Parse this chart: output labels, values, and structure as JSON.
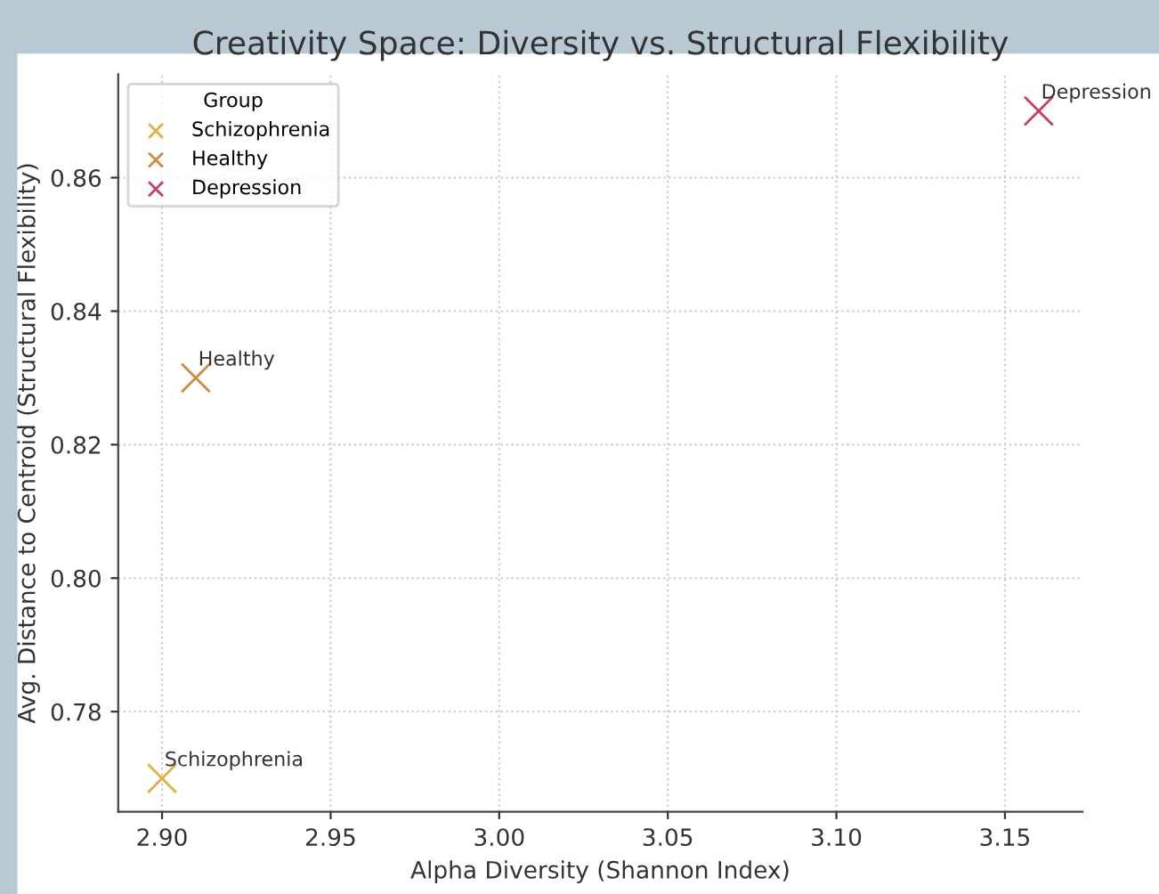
{
  "chart_data": {
    "type": "scatter",
    "title": "Creativity Space: Diversity vs. Structural Flexibility",
    "xlabel": "Alpha Diversity (Shannon Index)",
    "ylabel": "Avg. Distance to Centroid (Structural Flexibility)",
    "legend_title": "Group",
    "legend": "top left",
    "grid": true,
    "marker": "cross",
    "xlim": [
      2.887,
      3.173
    ],
    "xticks": [
      {
        "value": 2.9,
        "label": "2.90"
      },
      {
        "value": 2.95,
        "label": "2.95"
      },
      {
        "value": 3.0,
        "label": "3.00"
      },
      {
        "value": 3.05,
        "label": "3.05"
      },
      {
        "value": 3.1,
        "label": "3.10"
      },
      {
        "value": 3.15,
        "label": "3.15"
      }
    ],
    "ylim": [
      0.765,
      0.8755
    ],
    "yticks": [
      {
        "value": 0.78,
        "label": "0.78"
      },
      {
        "value": 0.8,
        "label": "0.80"
      },
      {
        "value": 0.82,
        "label": "0.82"
      },
      {
        "value": 0.84,
        "label": "0.84"
      },
      {
        "value": 0.86,
        "label": "0.86"
      }
    ],
    "series": [
      {
        "name": "Schizophrenia",
        "color": "#e0b040",
        "x": [
          2.9
        ],
        "values": [
          0.77
        ]
      },
      {
        "name": "Healthy",
        "color": "#d08a40",
        "x": [
          2.91
        ],
        "values": [
          0.83
        ]
      },
      {
        "name": "Depression",
        "color": "#c84060",
        "x": [
          3.16
        ],
        "values": [
          0.87
        ]
      }
    ],
    "annotations": [
      {
        "text": "Schizophrenia",
        "x": 2.9,
        "y": 0.77
      },
      {
        "text": "Healthy",
        "x": 2.91,
        "y": 0.83
      },
      {
        "text": "Depression",
        "x": 3.16,
        "y": 0.87
      }
    ]
  }
}
